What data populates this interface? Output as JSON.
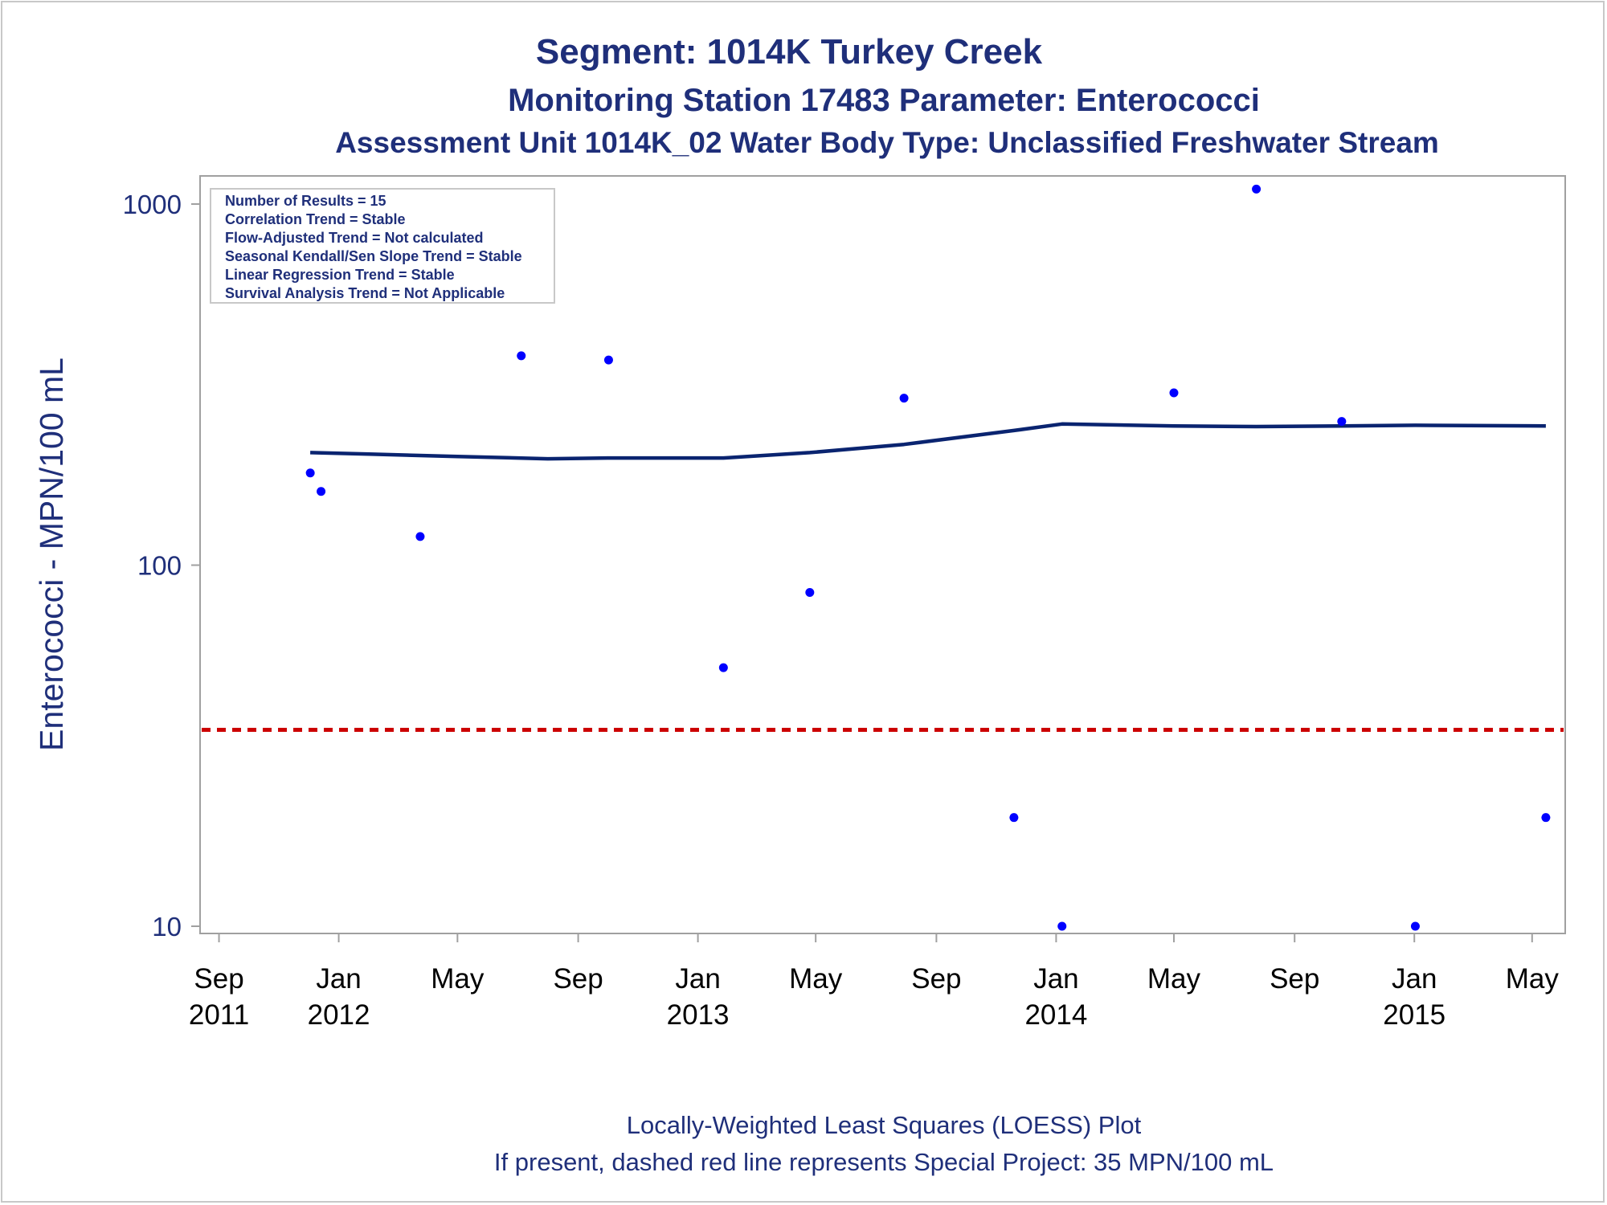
{
  "titles": [
    "Segment: 1014K  Turkey Creek",
    "Monitoring Station 17483 Parameter: Enterococci",
    "Assessment Unit 1014K_02   Water Body Type: Unclassified Freshwater Stream"
  ],
  "stats_box": [
    "Number of Results = 15",
    "Correlation Trend = Stable",
    "Flow-Adjusted Trend = Not calculated",
    "Seasonal Kendall/Sen Slope Trend = Stable",
    "Linear Regression Trend = Stable",
    "Survival Analysis Trend = Not Applicable"
  ],
  "footnotes": [
    "Locally-Weighted Least Squares (LOESS) Plot",
    "If present, dashed red line represents Special Project: 35 MPN/100 mL"
  ],
  "colors": {
    "title": "#1f2f7a",
    "points": "#0000ff",
    "loess": "#0a2470",
    "reference": "#cc0000",
    "axis": "#a0a0a0"
  },
  "chart_data": {
    "type": "scatter",
    "ylabel": "Enterococci - MPN/100 mL",
    "xlabel": "",
    "y_scale": "log",
    "ylim": [
      10,
      1100
    ],
    "xlim": [
      "2011-08-25",
      "2015-05-20"
    ],
    "yticks": [
      10,
      100,
      1000
    ],
    "xticks": [
      {
        "date": "2011-09-01",
        "lines": [
          "Sep",
          "2011"
        ]
      },
      {
        "date": "2012-01-01",
        "lines": [
          "Jan",
          "2012"
        ]
      },
      {
        "date": "2012-05-01",
        "lines": [
          "May"
        ]
      },
      {
        "date": "2012-09-01",
        "lines": [
          "Sep"
        ]
      },
      {
        "date": "2013-01-01",
        "lines": [
          "Jan",
          "2013"
        ]
      },
      {
        "date": "2013-05-01",
        "lines": [
          "May"
        ]
      },
      {
        "date": "2013-09-01",
        "lines": [
          "Sep"
        ]
      },
      {
        "date": "2014-01-01",
        "lines": [
          "Jan",
          "2014"
        ]
      },
      {
        "date": "2014-05-01",
        "lines": [
          "May"
        ]
      },
      {
        "date": "2014-09-01",
        "lines": [
          "Sep"
        ]
      },
      {
        "date": "2015-01-01",
        "lines": [
          "Jan",
          "2015"
        ]
      },
      {
        "date": "2015-05-01",
        "lines": [
          "May"
        ]
      }
    ],
    "grid": false,
    "reference_line": {
      "y": 35,
      "style": "dashed"
    },
    "series": [
      {
        "type": "scatter",
        "points": [
          {
            "x": "2011-12-03",
            "y": 180
          },
          {
            "x": "2011-12-14",
            "y": 160
          },
          {
            "x": "2012-03-24",
            "y": 120
          },
          {
            "x": "2012-07-05",
            "y": 380
          },
          {
            "x": "2012-10-02",
            "y": 370
          },
          {
            "x": "2013-01-27",
            "y": 52
          },
          {
            "x": "2013-04-25",
            "y": 84
          },
          {
            "x": "2013-07-30",
            "y": 290
          },
          {
            "x": "2013-11-19",
            "y": 20
          },
          {
            "x": "2014-01-07",
            "y": 10
          },
          {
            "x": "2014-05-01",
            "y": 300
          },
          {
            "x": "2014-07-24",
            "y": 1100
          },
          {
            "x": "2014-10-19",
            "y": 250
          },
          {
            "x": "2015-01-02",
            "y": 10
          },
          {
            "x": "2015-05-15",
            "y": 20
          }
        ]
      },
      {
        "type": "line",
        "name": "LOESS",
        "points": [
          {
            "x": "2011-12-03",
            "y": 205
          },
          {
            "x": "2012-02-01",
            "y": 203
          },
          {
            "x": "2012-05-01",
            "y": 200
          },
          {
            "x": "2012-08-01",
            "y": 197
          },
          {
            "x": "2012-10-01",
            "y": 198
          },
          {
            "x": "2013-01-27",
            "y": 198
          },
          {
            "x": "2013-04-25",
            "y": 205
          },
          {
            "x": "2013-07-30",
            "y": 216
          },
          {
            "x": "2013-11-19",
            "y": 236
          },
          {
            "x": "2014-01-07",
            "y": 246
          },
          {
            "x": "2014-05-01",
            "y": 243
          },
          {
            "x": "2014-07-24",
            "y": 242
          },
          {
            "x": "2014-10-19",
            "y": 243
          },
          {
            "x": "2015-01-02",
            "y": 244
          },
          {
            "x": "2015-05-15",
            "y": 243
          }
        ]
      }
    ]
  }
}
